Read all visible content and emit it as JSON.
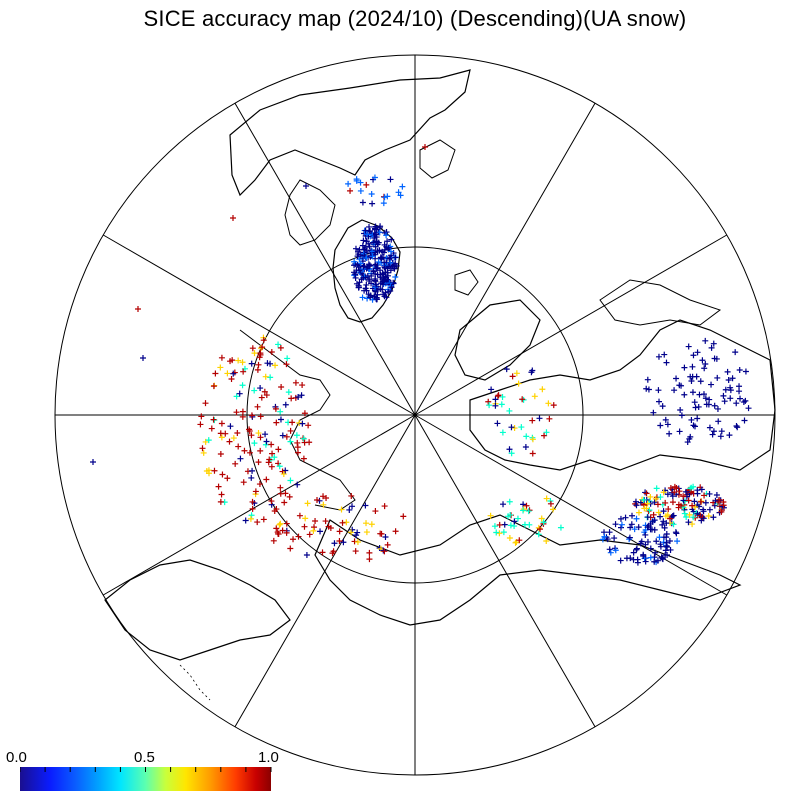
{
  "title": "SICE accuracy map (2024/10) (Descending)(UA snow)",
  "colorbar": {
    "labels": [
      "0.0",
      "0.5",
      "1.0"
    ],
    "range": [
      0.0,
      1.0
    ],
    "colormap": "jet"
  },
  "map": {
    "projection": "north polar stereographic",
    "graticule_meridian_step_deg": 30,
    "graticule_latitude_circle_deg": 70,
    "coastline_color": "#000000",
    "marker": "plus",
    "marker_colors": {
      "low": "#00008b",
      "mid_low": "#0064ff",
      "mid": "#00ffcc",
      "mid_high": "#ffd200",
      "high": "#b40000"
    }
  }
}
